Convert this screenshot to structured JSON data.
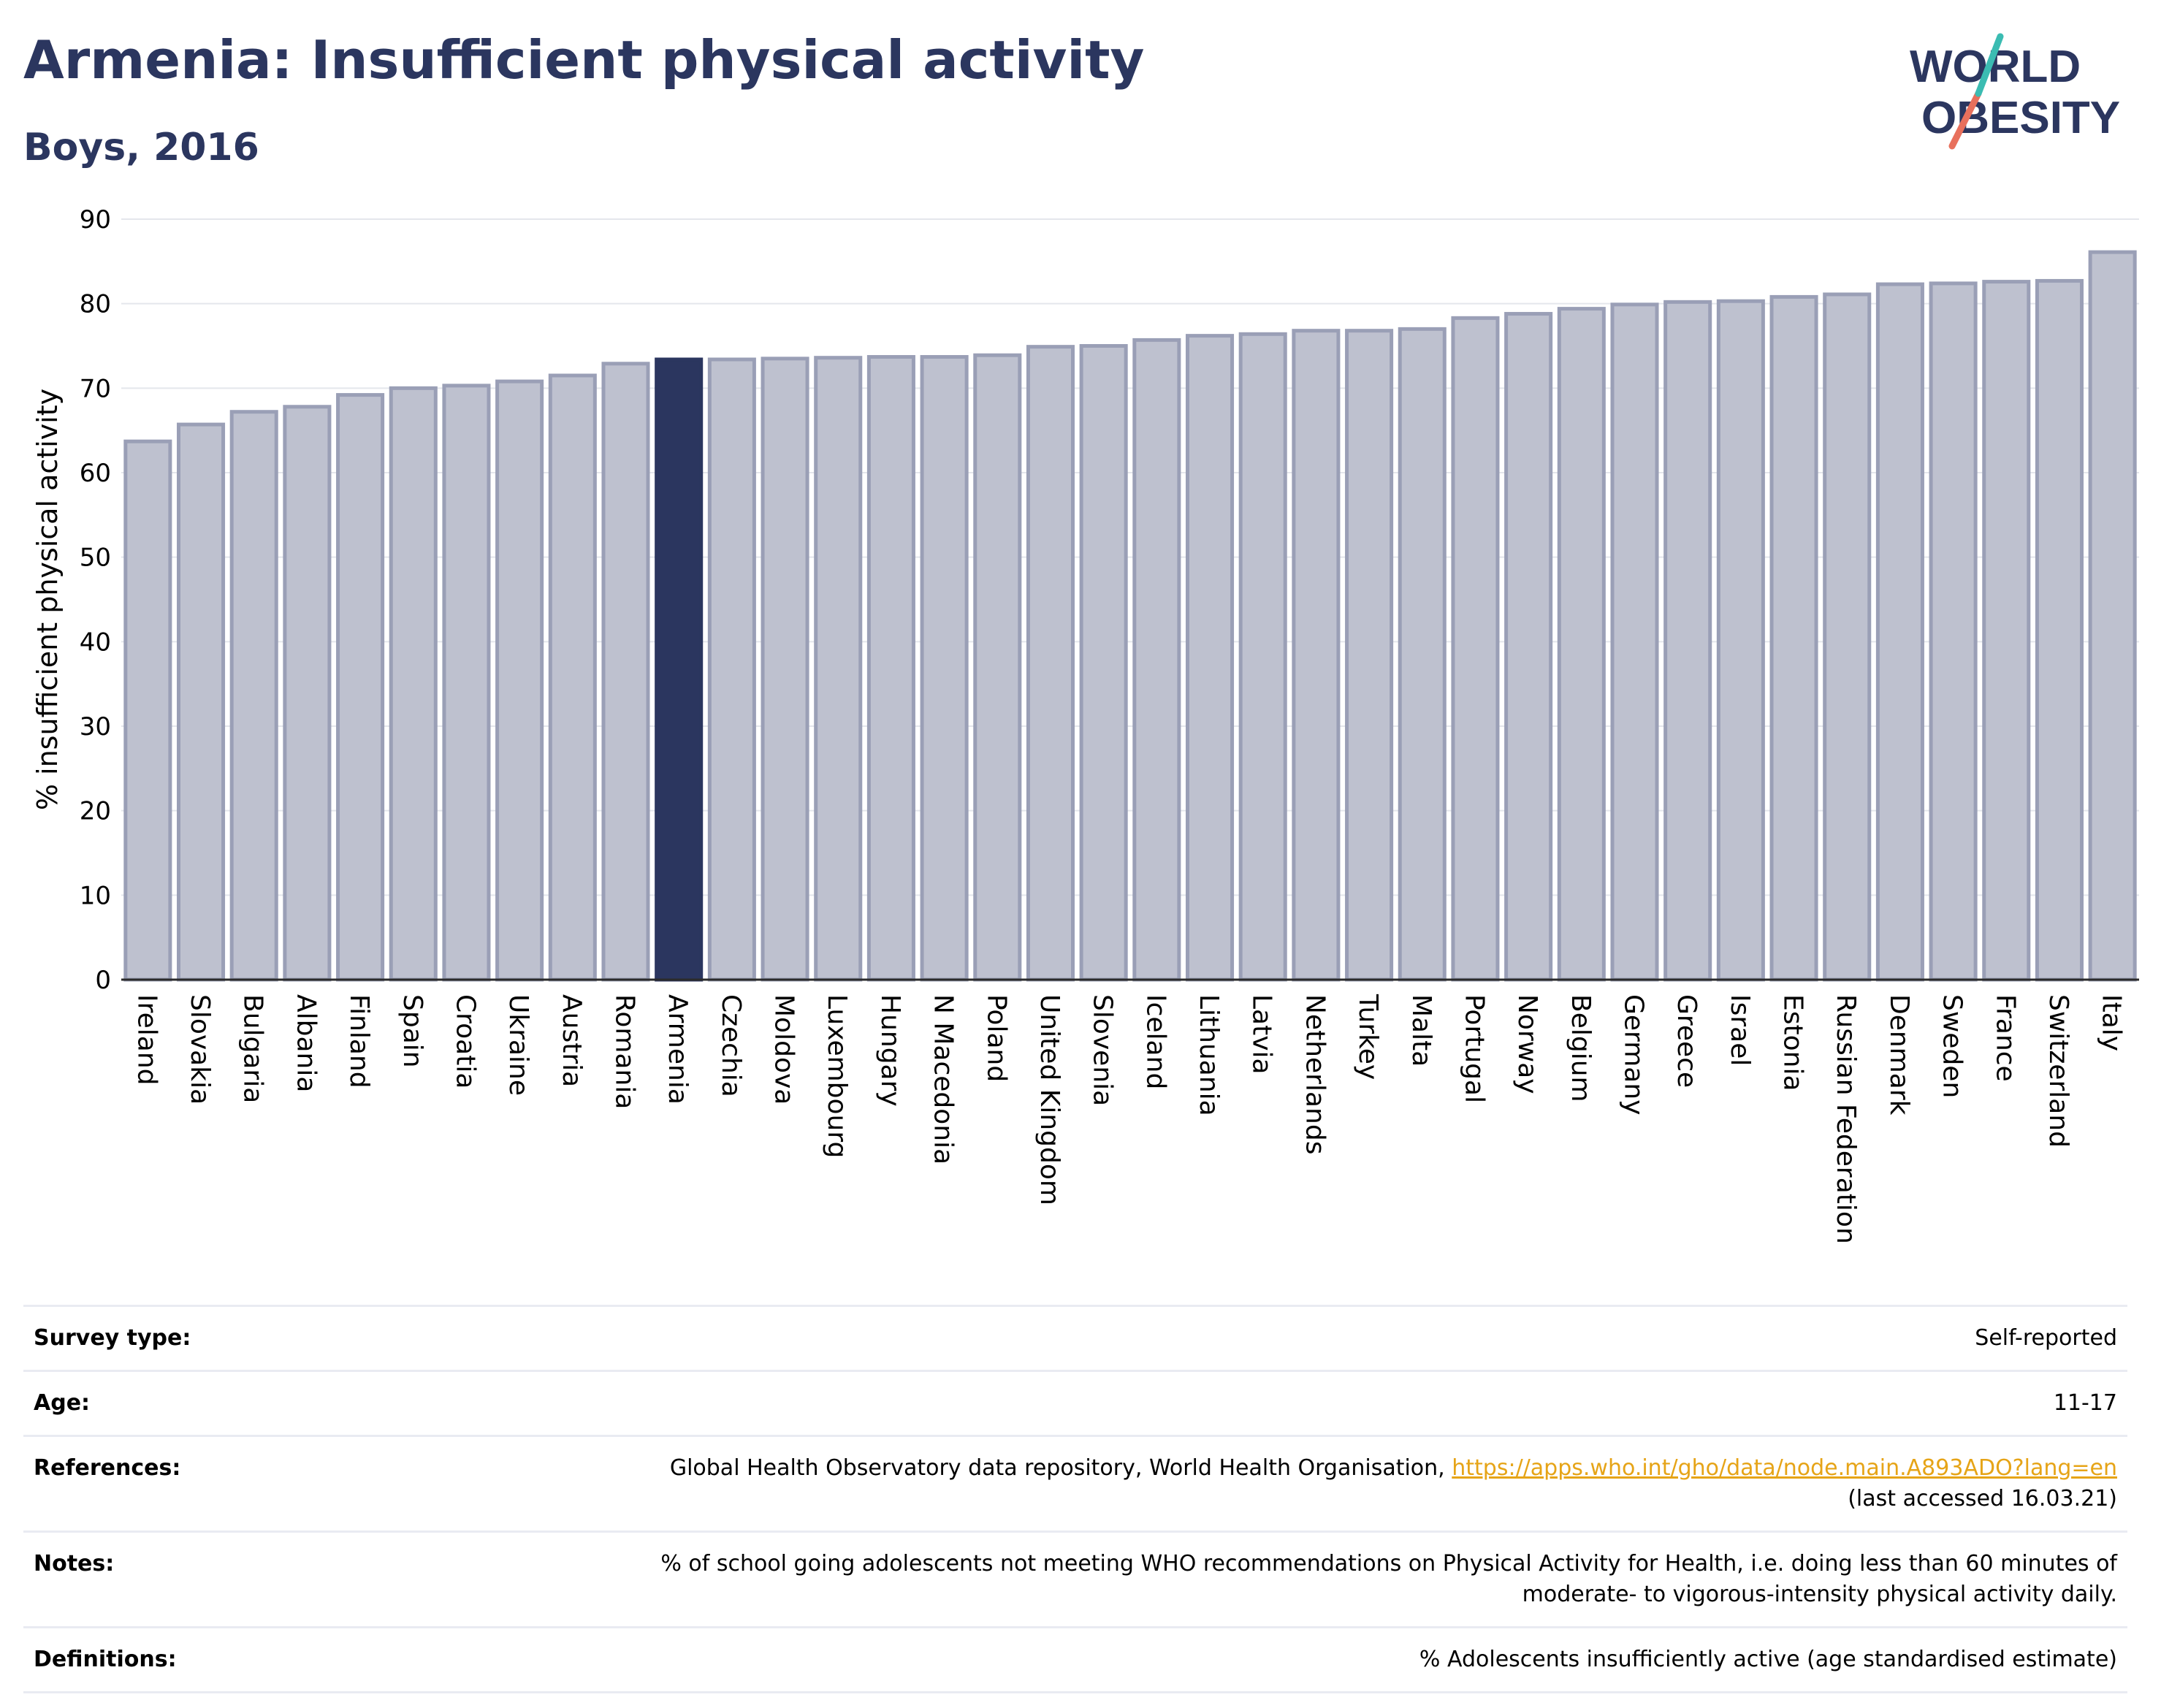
{
  "header": {
    "title": "Armenia: Insufficient physical activity",
    "subtitle": "Boys, 2016"
  },
  "logo": {
    "line1": "WORLD",
    "line2": "OBESITY"
  },
  "colors": {
    "highlight_bar": "#2b365f",
    "bar_fill": "#bec1cf",
    "bar_stroke": "#9a9fb6",
    "title": "#2b365f"
  },
  "chart_data": {
    "type": "bar",
    "title": "Armenia: Insufficient physical activity",
    "subtitle": "Boys, 2016",
    "xlabel": "",
    "ylabel": "% insufficient physical activity",
    "ylim": [
      0,
      90
    ],
    "yticks": [
      0,
      10,
      20,
      30,
      40,
      50,
      60,
      70,
      80,
      90
    ],
    "grid": true,
    "highlight": "Armenia",
    "categories": [
      "Ireland",
      "Slovakia",
      "Bulgaria",
      "Albania",
      "Finland",
      "Spain",
      "Croatia",
      "Ukraine",
      "Austria",
      "Romania",
      "Armenia",
      "Czechia",
      "Moldova",
      "Luxembourg",
      "Hungary",
      "N Macedonia",
      "Poland",
      "United Kingdom",
      "Slovenia",
      "Iceland",
      "Lithuania",
      "Latvia",
      "Netherlands",
      "Turkey",
      "Malta",
      "Portugal",
      "Norway",
      "Belgium",
      "Germany",
      "Greece",
      "Israel",
      "Estonia",
      "Russian Federation",
      "Denmark",
      "Sweden",
      "France",
      "Switzerland",
      "Italy"
    ],
    "values": [
      63.7,
      65.7,
      67.2,
      67.8,
      69.2,
      70.0,
      70.3,
      70.8,
      71.5,
      72.9,
      73.4,
      73.4,
      73.5,
      73.6,
      73.7,
      73.7,
      73.9,
      74.9,
      75.0,
      75.7,
      76.2,
      76.4,
      76.8,
      76.8,
      77.0,
      78.3,
      78.8,
      79.4,
      79.9,
      80.2,
      80.3,
      80.8,
      81.1,
      82.3,
      82.4,
      82.6,
      82.7,
      86.1
    ]
  },
  "info": [
    {
      "key": "Survey type:",
      "value": "Self-reported"
    },
    {
      "key": "Age:",
      "value": "11-17"
    },
    {
      "key": "References:",
      "value": "Global Health Observatory data repository, World Health Organisation,",
      "link": "https://apps.who.int/gho/data/node.main.A893ADO?lang=en",
      "value2": "(last accessed 16.03.21)"
    },
    {
      "key": "Notes:",
      "value": "% of school going adolescents not meeting WHO recommendations on Physical Activity for Health, i.e. doing less than 60 minutes of",
      "value2": "moderate- to vigorous-intensity physical activity daily."
    },
    {
      "key": "Definitions:",
      "value": "% Adolescents insufficiently active (age standardised estimate)"
    }
  ]
}
